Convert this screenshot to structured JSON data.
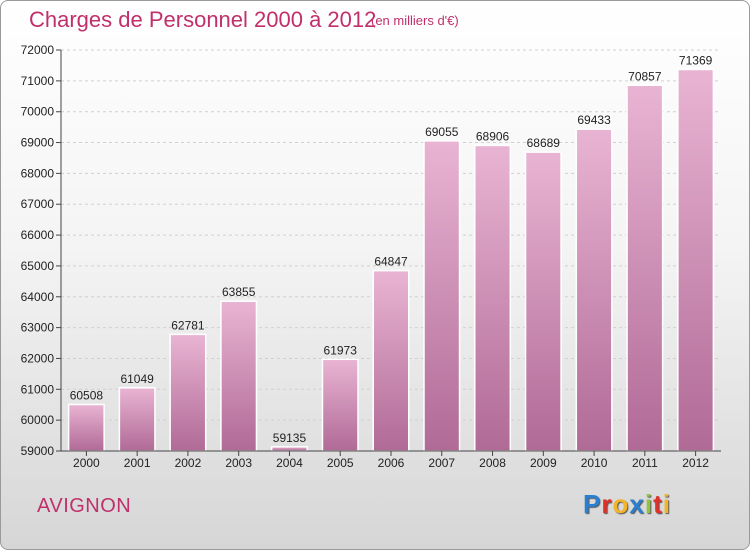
{
  "header": {
    "title": "Charges de Personnel 2000 à 2012",
    "subtitle": "(en milliers d'€)"
  },
  "footer": {
    "city": "AVIGNON",
    "logo_letters": [
      {
        "char": "P",
        "color": "#2a7fd0"
      },
      {
        "char": "r",
        "color": "#e0302a"
      },
      {
        "char": "o",
        "color": "#f2b52a"
      },
      {
        "char": "x",
        "color": "#2a7fd0"
      },
      {
        "char": "i",
        "color": "#8dc63f"
      },
      {
        "char": "t",
        "color": "#e0302a"
      },
      {
        "char": "i",
        "color": "#f2b52a"
      }
    ]
  },
  "colors": {
    "bar_light": "#e9b4d3",
    "bar_dark": "#b06a96",
    "title": "#c0306a"
  },
  "chart_data": {
    "type": "bar",
    "title": "Charges de Personnel 2000 à 2012",
    "subtitle": "(en milliers d'€)",
    "categories": [
      "2000",
      "2001",
      "2002",
      "2003",
      "2004",
      "2005",
      "2006",
      "2007",
      "2008",
      "2009",
      "2010",
      "2011",
      "2012"
    ],
    "values": [
      60508,
      61049,
      62781,
      63855,
      59135,
      61973,
      64847,
      69055,
      68906,
      68689,
      69433,
      70857,
      71369
    ],
    "ylim": [
      59000,
      72000
    ],
    "yticks": [
      59000,
      60000,
      61000,
      62000,
      63000,
      64000,
      65000,
      66000,
      67000,
      68000,
      69000,
      70000,
      71000,
      72000
    ],
    "grid": true
  }
}
